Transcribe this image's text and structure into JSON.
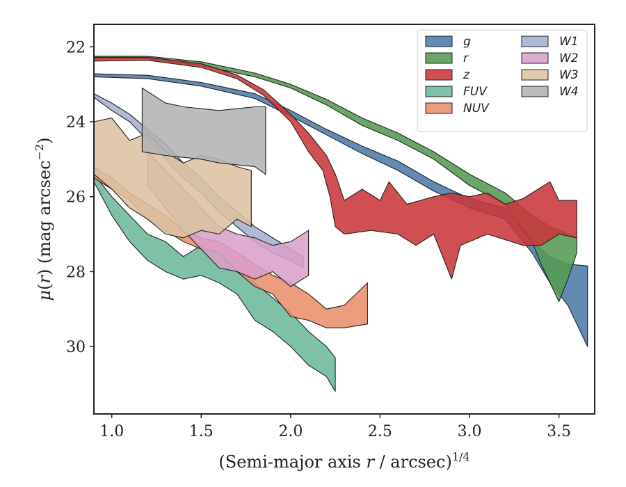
{
  "chart_data": {
    "type": "area",
    "xlabel": "(Semi-major axis r / arcsec)^1/4",
    "xlabel_parts": {
      "pre": "(Semi-major axis ",
      "var": "r",
      "mid": " / arcsec)",
      "sup": "1/4"
    },
    "ylabel": "μ(r) (mag arcsec^-2)",
    "ylabel_parts": {
      "mu": "μ",
      "open": "(",
      "var": "r",
      "close": ")",
      "unit": " (mag arcsec",
      "sup": "−2",
      "end": ")"
    },
    "xlim": [
      0.9,
      3.7
    ],
    "ylim": [
      31.8,
      21.4
    ],
    "y_inverted": true,
    "xticks": [
      "1.0",
      "1.5",
      "2.0",
      "2.5",
      "3.0",
      "3.5"
    ],
    "xtick_values": [
      1.0,
      1.5,
      2.0,
      2.5,
      3.0,
      3.5
    ],
    "yticks": [
      "22",
      "24",
      "26",
      "28",
      "30"
    ],
    "ytick_values": [
      22,
      24,
      26,
      28,
      30
    ],
    "legend_position": "top-right",
    "legend_columns": 2,
    "series": [
      {
        "name": "g",
        "color": "#4c7aa8",
        "upper": [
          [
            0.9,
            22.72
          ],
          [
            1.2,
            22.76
          ],
          [
            1.5,
            22.95
          ],
          [
            1.8,
            23.25
          ],
          [
            2.0,
            23.7
          ],
          [
            2.2,
            24.2
          ],
          [
            2.4,
            24.65
          ],
          [
            2.6,
            25.05
          ],
          [
            2.8,
            25.6
          ],
          [
            3.0,
            26.05
          ],
          [
            3.2,
            26.3
          ],
          [
            3.35,
            27.2
          ],
          [
            3.45,
            27.6
          ],
          [
            3.55,
            27.8
          ],
          [
            3.66,
            27.85
          ]
        ],
        "lower": [
          [
            3.66,
            30.0
          ],
          [
            3.55,
            28.9
          ],
          [
            3.45,
            28.3
          ],
          [
            3.35,
            27.5
          ],
          [
            3.2,
            26.6
          ],
          [
            3.0,
            26.3
          ],
          [
            2.8,
            25.85
          ],
          [
            2.6,
            25.3
          ],
          [
            2.4,
            24.85
          ],
          [
            2.2,
            24.35
          ],
          [
            2.0,
            23.85
          ],
          [
            1.8,
            23.38
          ],
          [
            1.5,
            23.05
          ],
          [
            1.2,
            22.85
          ],
          [
            0.9,
            22.8
          ]
        ]
      },
      {
        "name": "r",
        "color": "#559a52",
        "upper": [
          [
            0.9,
            22.25
          ],
          [
            1.2,
            22.25
          ],
          [
            1.5,
            22.4
          ],
          [
            1.8,
            22.7
          ],
          [
            2.0,
            23.0
          ],
          [
            2.2,
            23.4
          ],
          [
            2.4,
            23.9
          ],
          [
            2.6,
            24.3
          ],
          [
            2.8,
            24.8
          ],
          [
            3.0,
            25.4
          ],
          [
            3.2,
            25.9
          ],
          [
            3.35,
            26.5
          ],
          [
            3.45,
            26.8
          ],
          [
            3.55,
            27.0
          ],
          [
            3.6,
            27.1
          ]
        ],
        "lower": [
          [
            3.6,
            27.5
          ],
          [
            3.55,
            28.2
          ],
          [
            3.5,
            28.8
          ],
          [
            3.4,
            27.8
          ],
          [
            3.35,
            27.2
          ],
          [
            3.2,
            26.2
          ],
          [
            3.0,
            25.7
          ],
          [
            2.8,
            25.0
          ],
          [
            2.6,
            24.5
          ],
          [
            2.4,
            24.1
          ],
          [
            2.2,
            23.55
          ],
          [
            2.0,
            23.1
          ],
          [
            1.8,
            22.8
          ],
          [
            1.5,
            22.5
          ],
          [
            1.2,
            22.32
          ],
          [
            0.9,
            22.32
          ]
        ]
      },
      {
        "name": "z",
        "color": "#c8373a",
        "upper": [
          [
            0.9,
            22.28
          ],
          [
            1.2,
            22.28
          ],
          [
            1.5,
            22.45
          ],
          [
            1.7,
            22.75
          ],
          [
            1.85,
            23.15
          ],
          [
            2.0,
            23.8
          ],
          [
            2.1,
            24.3
          ],
          [
            2.2,
            24.9
          ],
          [
            2.25,
            25.4
          ],
          [
            2.3,
            26.1
          ],
          [
            2.4,
            25.8
          ],
          [
            2.5,
            26.1
          ],
          [
            2.55,
            25.6
          ],
          [
            2.65,
            26.2
          ],
          [
            2.8,
            26.0
          ],
          [
            2.9,
            25.9
          ],
          [
            3.0,
            26.0
          ],
          [
            3.1,
            25.9
          ],
          [
            3.2,
            26.2
          ],
          [
            3.3,
            26.05
          ],
          [
            3.45,
            25.6
          ],
          [
            3.5,
            26.1
          ],
          [
            3.6,
            26.1
          ]
        ],
        "lower": [
          [
            3.6,
            27.1
          ],
          [
            3.5,
            27.0
          ],
          [
            3.4,
            27.3
          ],
          [
            3.3,
            27.3
          ],
          [
            3.1,
            27.0
          ],
          [
            2.95,
            27.3
          ],
          [
            2.9,
            28.2
          ],
          [
            2.8,
            27.0
          ],
          [
            2.7,
            27.3
          ],
          [
            2.6,
            27.0
          ],
          [
            2.45,
            26.9
          ],
          [
            2.3,
            27.0
          ],
          [
            2.25,
            26.8
          ],
          [
            2.22,
            26.0
          ],
          [
            2.18,
            25.3
          ],
          [
            2.1,
            24.8
          ],
          [
            2.0,
            24.0
          ],
          [
            1.85,
            23.3
          ],
          [
            1.7,
            22.85
          ],
          [
            1.5,
            22.55
          ],
          [
            1.2,
            22.36
          ],
          [
            0.9,
            22.38
          ]
        ]
      },
      {
        "name": "FUV",
        "color": "#6db89b",
        "upper": [
          [
            0.9,
            25.4
          ],
          [
            1.0,
            26.0
          ],
          [
            1.1,
            26.5
          ],
          [
            1.2,
            27.0
          ],
          [
            1.3,
            27.2
          ],
          [
            1.4,
            27.6
          ],
          [
            1.5,
            27.3
          ],
          [
            1.6,
            27.5
          ],
          [
            1.7,
            27.9
          ],
          [
            1.8,
            28.3
          ],
          [
            1.9,
            28.7
          ],
          [
            2.0,
            29.1
          ],
          [
            2.1,
            29.6
          ],
          [
            2.2,
            30.0
          ],
          [
            2.25,
            30.3
          ]
        ],
        "lower": [
          [
            2.25,
            31.2
          ],
          [
            2.2,
            30.8
          ],
          [
            2.1,
            30.5
          ],
          [
            2.0,
            30.0
          ],
          [
            1.9,
            29.6
          ],
          [
            1.8,
            29.3
          ],
          [
            1.7,
            28.6
          ],
          [
            1.6,
            28.3
          ],
          [
            1.5,
            28.1
          ],
          [
            1.4,
            28.2
          ],
          [
            1.3,
            28.0
          ],
          [
            1.2,
            27.7
          ],
          [
            1.1,
            27.2
          ],
          [
            1.0,
            26.5
          ],
          [
            0.9,
            25.6
          ]
        ]
      },
      {
        "name": "NUV",
        "color": "#e88f6c",
        "upper": [
          [
            0.9,
            25.2
          ],
          [
            1.0,
            25.5
          ],
          [
            1.1,
            25.9
          ],
          [
            1.2,
            26.2
          ],
          [
            1.3,
            26.5
          ],
          [
            1.4,
            26.9
          ],
          [
            1.5,
            27.1
          ],
          [
            1.6,
            27.2
          ],
          [
            1.7,
            27.5
          ],
          [
            1.8,
            27.8
          ],
          [
            1.9,
            28.1
          ],
          [
            2.0,
            28.3
          ],
          [
            2.1,
            28.6
          ],
          [
            2.2,
            29.0
          ],
          [
            2.3,
            28.9
          ],
          [
            2.43,
            28.3
          ]
        ],
        "lower": [
          [
            2.43,
            29.4
          ],
          [
            2.3,
            29.5
          ],
          [
            2.2,
            29.5
          ],
          [
            2.1,
            29.3
          ],
          [
            2.0,
            29.2
          ],
          [
            1.9,
            28.6
          ],
          [
            1.8,
            28.4
          ],
          [
            1.7,
            28.0
          ],
          [
            1.6,
            27.5
          ],
          [
            1.5,
            27.4
          ],
          [
            1.4,
            27.2
          ],
          [
            1.3,
            26.9
          ],
          [
            1.2,
            26.6
          ],
          [
            1.1,
            26.1
          ],
          [
            1.0,
            25.8
          ],
          [
            0.9,
            25.5
          ]
        ]
      },
      {
        "name": "W1",
        "color": "#a3b1d0",
        "upper": [
          [
            0.9,
            23.25
          ],
          [
            1.0,
            23.5
          ],
          [
            1.1,
            23.8
          ],
          [
            1.2,
            24.2
          ],
          [
            1.3,
            24.6
          ],
          [
            1.4,
            25.1
          ],
          [
            1.5,
            25.5
          ],
          [
            1.6,
            26.0
          ],
          [
            1.7,
            26.4
          ],
          [
            1.8,
            26.8
          ],
          [
            1.9,
            27.1
          ],
          [
            2.0,
            27.4
          ],
          [
            2.07,
            27.6
          ]
        ],
        "lower": [
          [
            2.07,
            27.9
          ],
          [
            2.0,
            27.7
          ],
          [
            1.9,
            27.5
          ],
          [
            1.8,
            27.2
          ],
          [
            1.7,
            26.8
          ],
          [
            1.6,
            26.4
          ],
          [
            1.5,
            25.9
          ],
          [
            1.4,
            25.5
          ],
          [
            1.3,
            25.0
          ],
          [
            1.2,
            24.5
          ],
          [
            1.1,
            24.0
          ],
          [
            1.0,
            23.7
          ],
          [
            0.9,
            23.35
          ]
        ]
      },
      {
        "name": "W2",
        "color": "#da9fcb",
        "upper": [
          [
            1.2,
            24.8
          ],
          [
            1.3,
            25.3
          ],
          [
            1.4,
            25.8
          ],
          [
            1.5,
            26.3
          ],
          [
            1.6,
            26.8
          ],
          [
            1.7,
            27.0
          ],
          [
            1.8,
            27.1
          ],
          [
            1.9,
            27.3
          ],
          [
            2.0,
            27.2
          ],
          [
            2.1,
            26.9
          ]
        ],
        "lower": [
          [
            2.1,
            28.1
          ],
          [
            2.0,
            28.4
          ],
          [
            1.9,
            28.0
          ],
          [
            1.8,
            28.2
          ],
          [
            1.7,
            28.0
          ],
          [
            1.6,
            27.9
          ],
          [
            1.5,
            27.4
          ],
          [
            1.4,
            26.9
          ],
          [
            1.3,
            26.3
          ],
          [
            1.2,
            25.7
          ]
        ]
      },
      {
        "name": "W3",
        "color": "#dcc1a0",
        "upper": [
          [
            0.9,
            24.0
          ],
          [
            1.0,
            23.9
          ],
          [
            1.1,
            24.5
          ],
          [
            1.2,
            24.3
          ],
          [
            1.3,
            24.8
          ],
          [
            1.4,
            25.1
          ],
          [
            1.5,
            24.9
          ],
          [
            1.6,
            25.0
          ],
          [
            1.7,
            25.2
          ],
          [
            1.78,
            25.3
          ]
        ],
        "lower": [
          [
            1.78,
            26.8
          ],
          [
            1.7,
            26.6
          ],
          [
            1.6,
            27.0
          ],
          [
            1.5,
            26.9
          ],
          [
            1.4,
            27.1
          ],
          [
            1.3,
            27.0
          ],
          [
            1.2,
            26.6
          ],
          [
            1.1,
            26.3
          ],
          [
            1.0,
            25.8
          ],
          [
            0.9,
            25.4
          ]
        ]
      },
      {
        "name": "W4",
        "color": "#b3b3b3",
        "upper": [
          [
            1.17,
            23.1
          ],
          [
            1.3,
            23.5
          ],
          [
            1.4,
            23.6
          ],
          [
            1.5,
            23.65
          ],
          [
            1.6,
            23.7
          ],
          [
            1.7,
            23.65
          ],
          [
            1.8,
            23.6
          ],
          [
            1.86,
            23.6
          ]
        ],
        "lower": [
          [
            1.86,
            25.4
          ],
          [
            1.8,
            25.2
          ],
          [
            1.7,
            25.15
          ],
          [
            1.6,
            25.1
          ],
          [
            1.5,
            25.0
          ],
          [
            1.4,
            24.95
          ],
          [
            1.3,
            24.9
          ],
          [
            1.17,
            24.8
          ]
        ]
      }
    ]
  }
}
